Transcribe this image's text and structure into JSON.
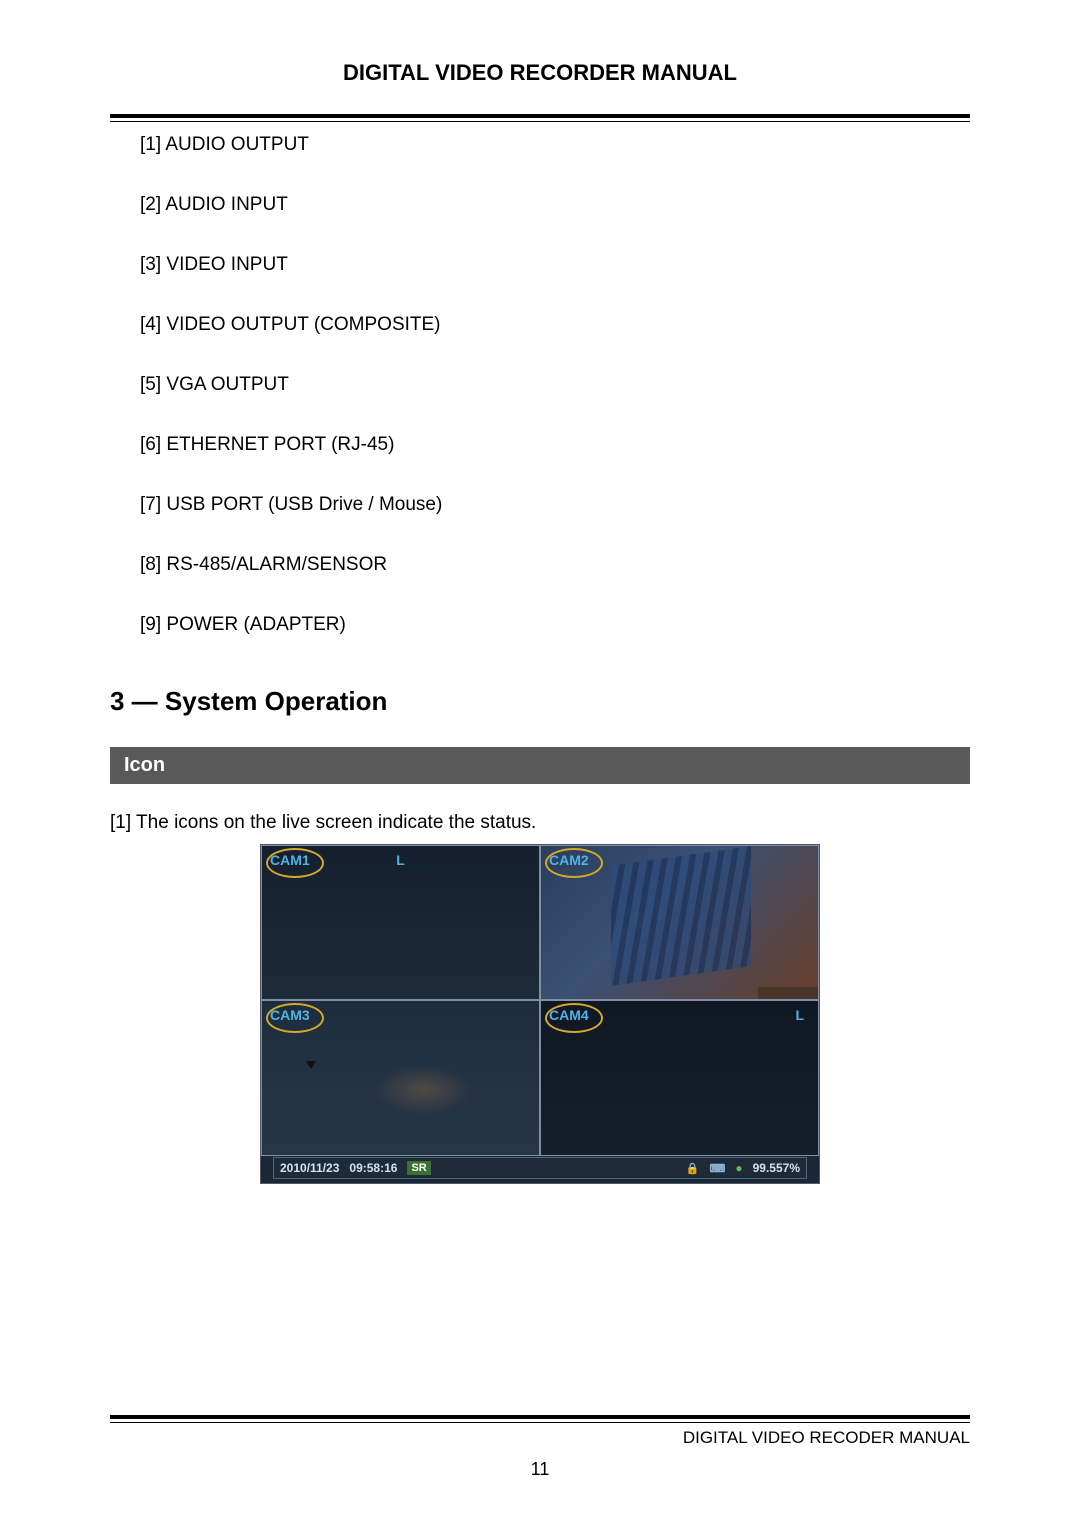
{
  "header": {
    "title": "DIGITAL VIDEO RECORDER MANUAL"
  },
  "ports": {
    "items": [
      "[1] AUDIO OUTPUT",
      "[2] AUDIO INPUT",
      "[3] VIDEO INPUT",
      "[4] VIDEO OUTPUT (COMPOSITE)",
      "[5] VGA OUTPUT",
      "[6] ETHERNET PORT (RJ-45)",
      "[7] USB PORT (USB Drive / Mouse)",
      "[8] RS-485/ALARM/SENSOR",
      "[9] POWER (ADAPTER)"
    ]
  },
  "section": {
    "heading": "3 — System Operation"
  },
  "subsection": {
    "title": "Icon"
  },
  "description": {
    "text": "[1] The icons on the live screen indicate the status."
  },
  "dvr": {
    "cams": {
      "c1": "CAM1",
      "c2": "CAM2",
      "c3": "CAM3",
      "c4": "CAM4"
    },
    "labels": {
      "L": "L"
    },
    "status": {
      "date": "2010/11/23",
      "time": "09:58:16",
      "sr": "SR",
      "lock": "🔒",
      "kbd": "⌨",
      "disk": "●",
      "pct": "99.557%"
    },
    "colors": {
      "screen_bg": "#1a2838",
      "cam_text": "#4fb3e8",
      "circle": "#d4a82a",
      "status_text": "#cfe3f5"
    }
  },
  "footer": {
    "text": "DIGITAL VIDEO RECODER MANUAL",
    "page": "11"
  }
}
